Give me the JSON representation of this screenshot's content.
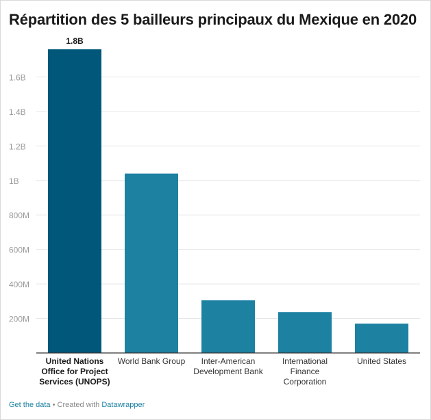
{
  "title": "Répartition des 5 bailleurs principaux du Mexique en 2020",
  "footer": {
    "get_data": "Get the data",
    "separator": " • Created with ",
    "datawrapper": "Datawrapper"
  },
  "colors": {
    "highlight": "#01577a",
    "bar": "#1d81a2",
    "grid": "#e6e6e6",
    "axis": "#333333",
    "tick_text": "#999999"
  },
  "chart_data": {
    "type": "bar",
    "categories": [
      [
        "United Nations",
        "Office for Project",
        "Services (UNOPS)"
      ],
      [
        "World Bank Group"
      ],
      [
        "Inter-American",
        "Development Bank"
      ],
      [
        "International",
        "Finance",
        "Corporation"
      ],
      [
        "United States"
      ]
    ],
    "values": [
      1760000000,
      1040000000,
      305000000,
      237000000,
      170000000
    ],
    "highlight_index": 0,
    "data_labels": [
      "1.8B",
      "",
      "",
      "",
      ""
    ],
    "ylim": [
      0,
      1800000000
    ],
    "yticks": [
      200000000,
      400000000,
      600000000,
      800000000,
      1000000000,
      1200000000,
      1400000000,
      1600000000
    ],
    "ytick_labels": [
      "200M",
      "400M",
      "600M",
      "800M",
      "1B",
      "1.2B",
      "1.4B",
      "1.6B"
    ],
    "grid": true,
    "legend": "none"
  }
}
